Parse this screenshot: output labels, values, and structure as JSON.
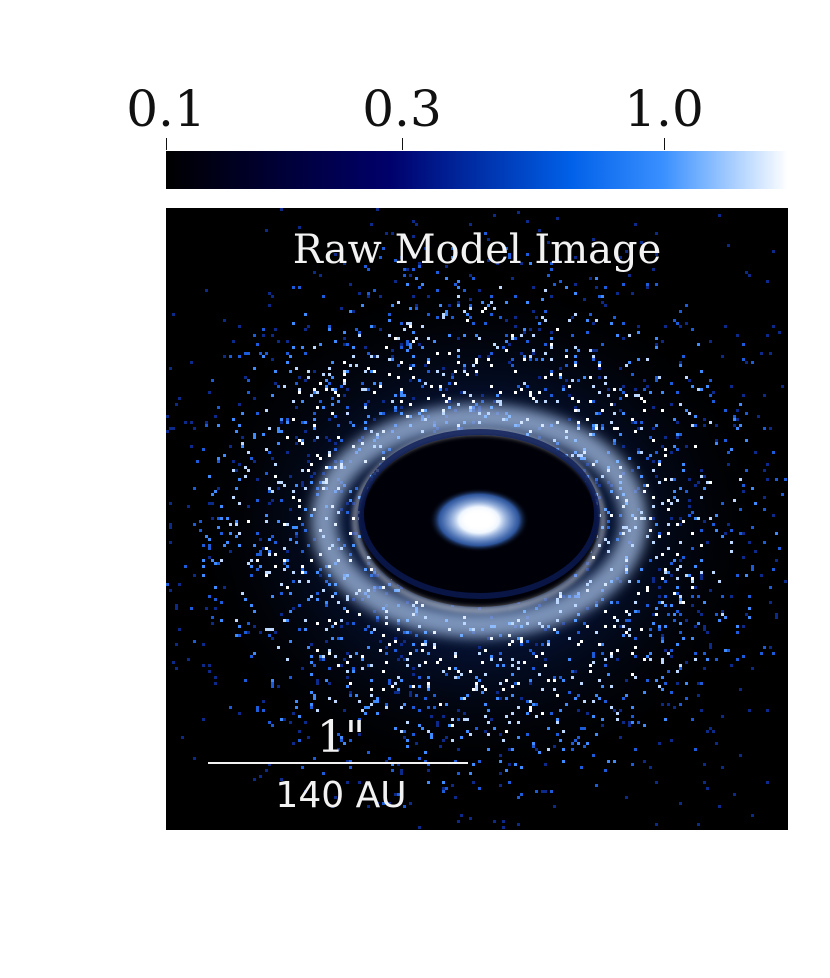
{
  "colorbar": {
    "ticks": [
      {
        "label": "0.1",
        "value": 0.1
      },
      {
        "label": "0.3",
        "value": 0.3
      },
      {
        "label": "1.0",
        "value": 1.0
      }
    ],
    "scale": "log",
    "range": [
      0.1,
      2.3
    ],
    "colors": [
      "#000000",
      "#00006b",
      "#0060e8",
      "#3a90ff",
      "#ffffff"
    ]
  },
  "panel": {
    "title": "Raw Model Image",
    "image": "disk-ring-image",
    "scalebar": {
      "angular": "1\"",
      "physical": "140 AU"
    }
  }
}
